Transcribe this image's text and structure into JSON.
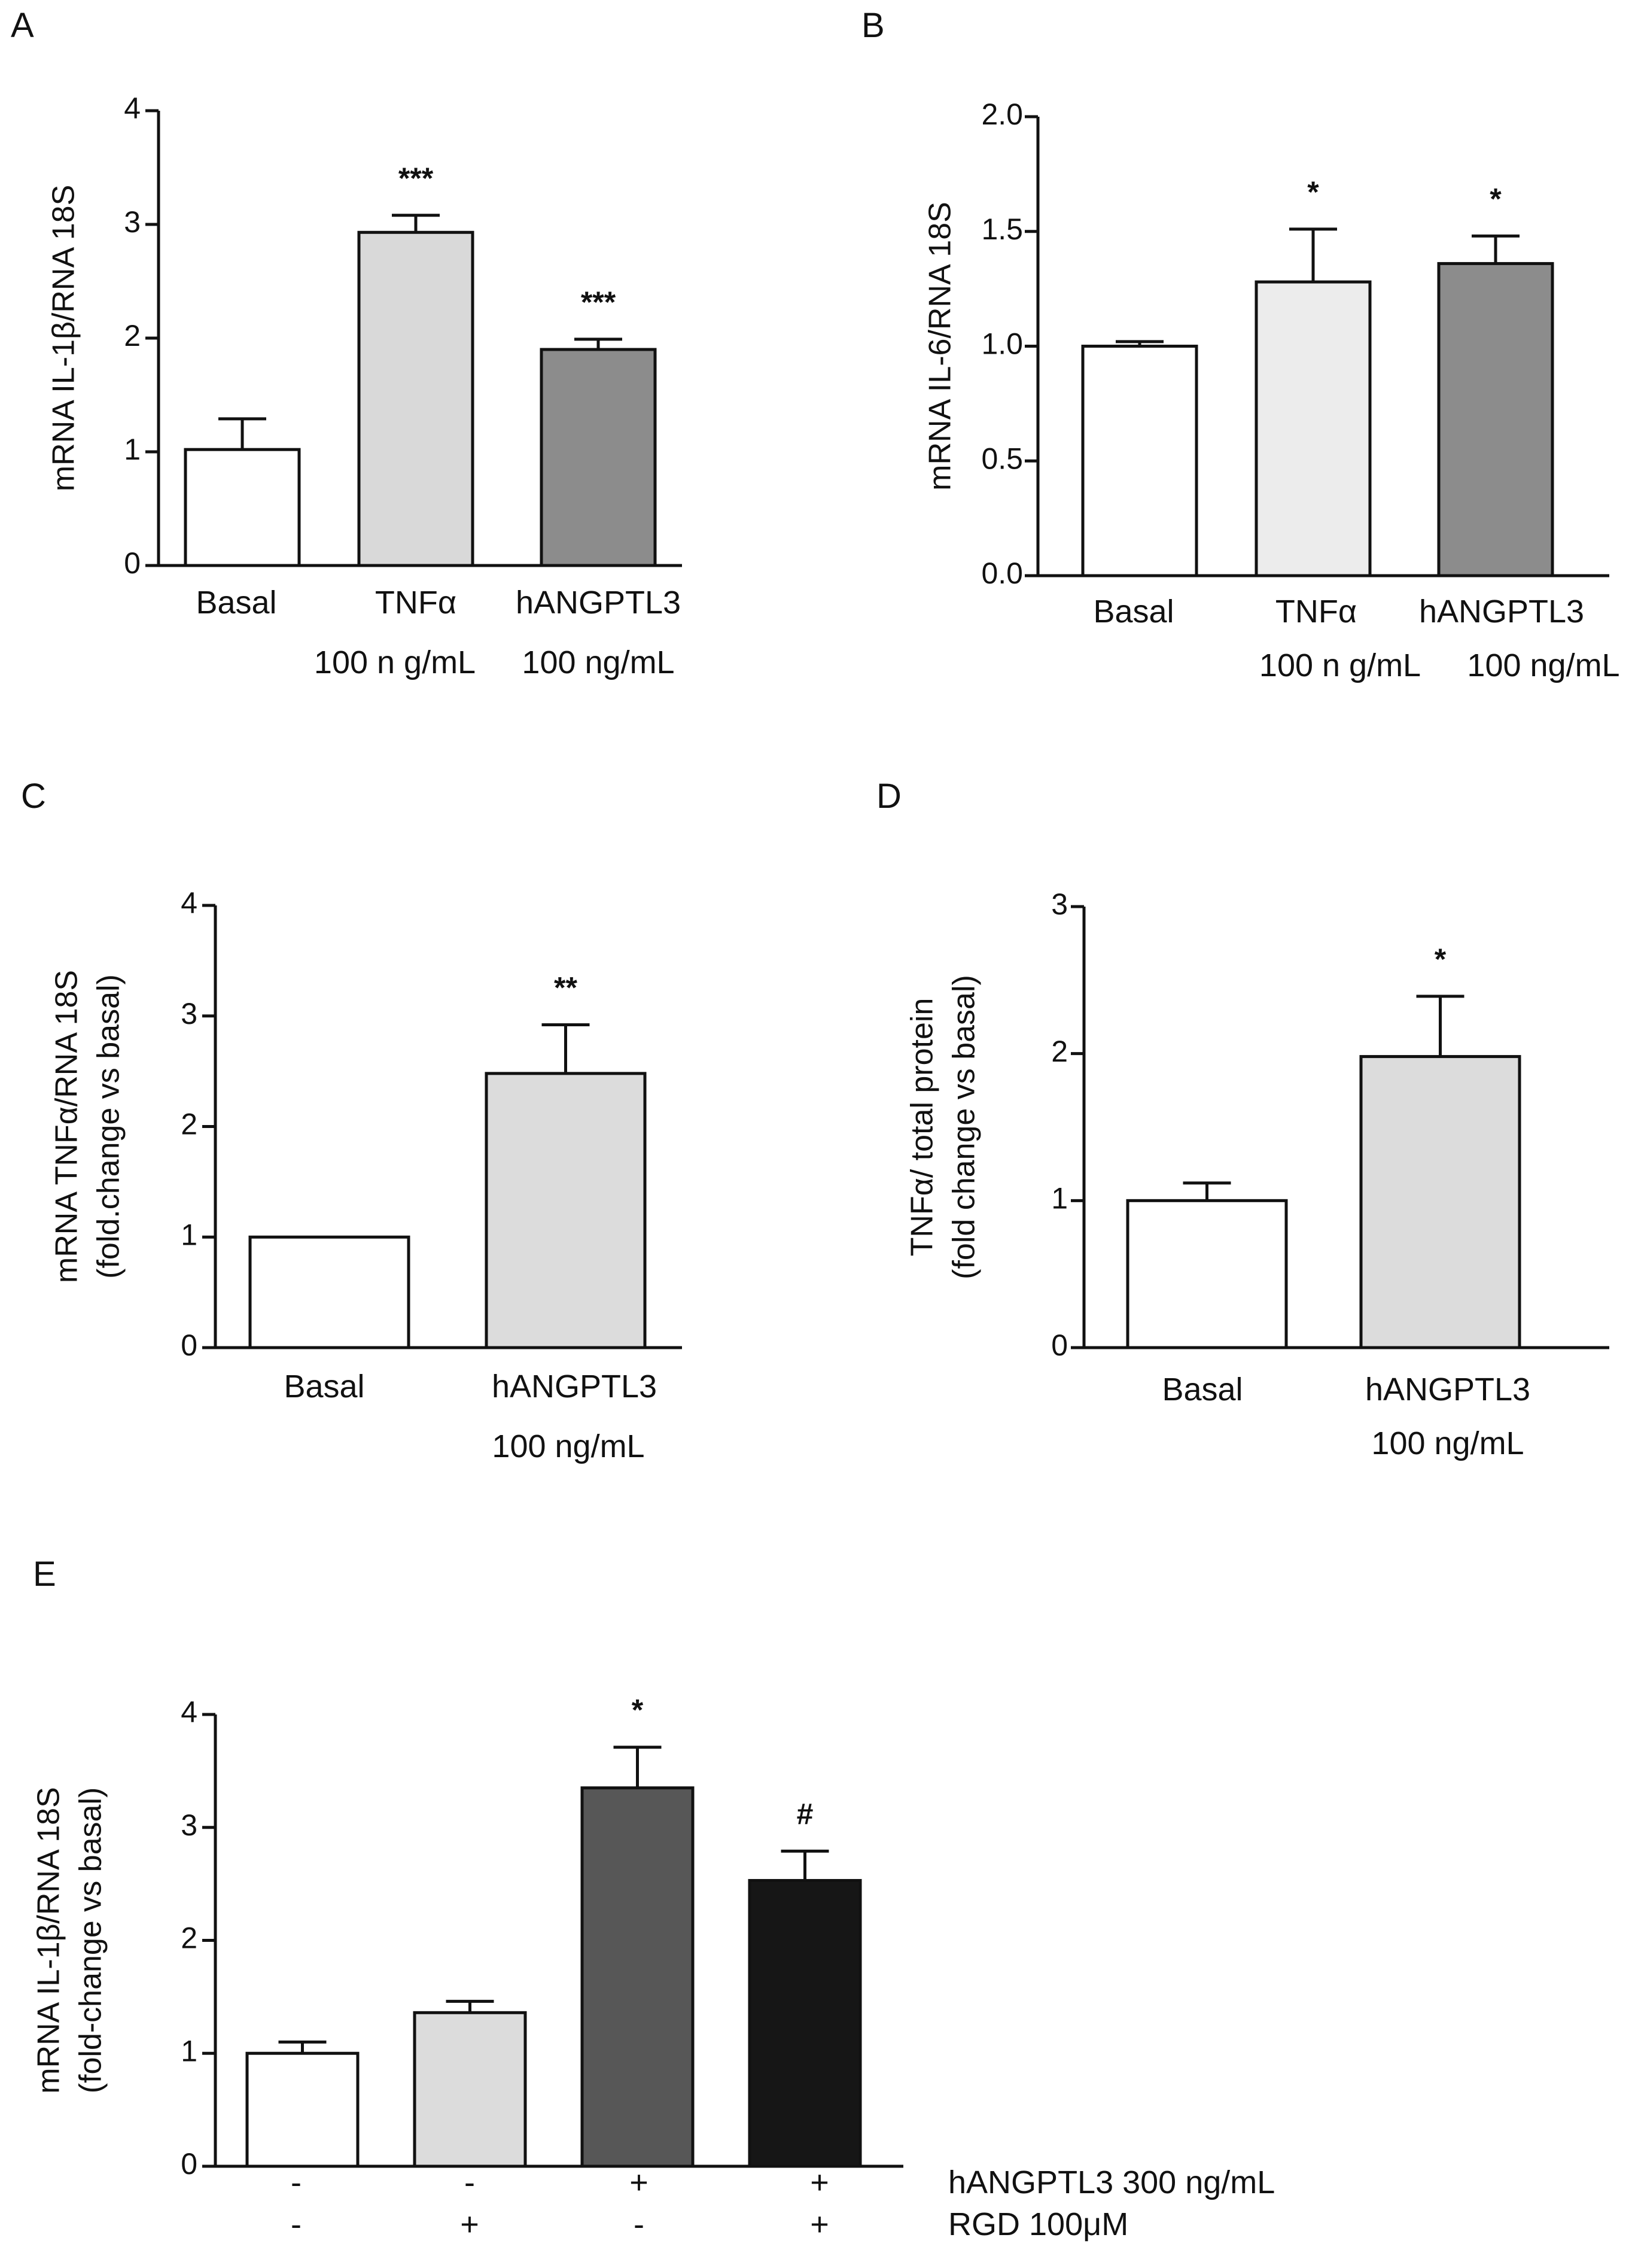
{
  "chart_data": [
    {
      "id": "A",
      "panel_label": "A",
      "type": "bar",
      "ylabel": "mRNA IL-1β/RNA 18S",
      "ylabel2": "",
      "ylim": [
        0,
        4
      ],
      "yticks": [
        "0",
        "1",
        "2",
        "3",
        "4"
      ],
      "ytick_values": [
        0,
        1,
        2,
        3,
        4
      ],
      "categories": [
        "Basal",
        "TNFα",
        "hANGPTL3"
      ],
      "sublabels": [
        "",
        "100 n g/mL",
        "100 ng/mL"
      ],
      "values": [
        1.02,
        2.93,
        1.9
      ],
      "errors": [
        0.27,
        0.15,
        0.09
      ],
      "significance": [
        "",
        "***",
        "***"
      ],
      "colors": [
        "#ffffff",
        "#d9d9d9",
        "#8c8c8c"
      ]
    },
    {
      "id": "B",
      "panel_label": "B",
      "type": "bar",
      "ylabel": "mRNA IL-6/RNA 18S",
      "ylabel2": "",
      "ylim": [
        0,
        2.0
      ],
      "yticks": [
        "0.0",
        "0.5",
        "1.0",
        "1.5",
        "2.0"
      ],
      "ytick_values": [
        0,
        0.5,
        1.0,
        1.5,
        2.0
      ],
      "categories": [
        "Basal",
        "TNFα",
        "hANGPTL3"
      ],
      "sublabels": [
        "",
        "100 n g/mL",
        "100 ng/mL"
      ],
      "values": [
        1.0,
        1.28,
        1.36
      ],
      "errors": [
        0.02,
        0.23,
        0.12
      ],
      "significance": [
        "",
        "*",
        "*"
      ],
      "colors": [
        "#ffffff",
        "#ececec",
        "#8c8c8c"
      ]
    },
    {
      "id": "C",
      "panel_label": "C",
      "type": "bar",
      "ylabel": "mRNA TNFα/RNA 18S",
      "ylabel2": "(fold.change vs basal)",
      "ylim": [
        0,
        4
      ],
      "yticks": [
        "0",
        "1",
        "2",
        "3",
        "4"
      ],
      "ytick_values": [
        0,
        1,
        2,
        3,
        4
      ],
      "categories": [
        "Basal",
        "hANGPTL3"
      ],
      "sublabels": [
        "",
        "100 ng/mL"
      ],
      "values": [
        1.0,
        2.48
      ],
      "errors": [
        0,
        0.44
      ],
      "significance": [
        "",
        "**"
      ],
      "colors": [
        "#ffffff",
        "#dcdcdc"
      ]
    },
    {
      "id": "D",
      "panel_label": "D",
      "type": "bar",
      "ylabel": "TNFα/ total protein",
      "ylabel2": "(fold change vs basal)",
      "ylim": [
        0,
        3
      ],
      "yticks": [
        "0",
        "1",
        "2",
        "3"
      ],
      "ytick_values": [
        0,
        1,
        2,
        3
      ],
      "categories": [
        "Basal",
        "hANGPTL3"
      ],
      "sublabels": [
        "",
        "100 ng/mL"
      ],
      "values": [
        1.0,
        1.98
      ],
      "errors": [
        0.12,
        0.41
      ],
      "significance": [
        "",
        "*"
      ],
      "colors": [
        "#ffffff",
        "#dcdcdc"
      ]
    },
    {
      "id": "E",
      "panel_label": "E",
      "type": "bar",
      "ylabel": "mRNA IL-1β/RNA 18S",
      "ylabel2": "(fold-change vs basal)",
      "ylim": [
        0,
        4
      ],
      "yticks": [
        "0",
        "1",
        "2",
        "3",
        "4"
      ],
      "ytick_values": [
        0,
        1,
        2,
        3,
        4
      ],
      "categories": [
        "",
        "",
        "",
        ""
      ],
      "sublabels": [
        "",
        "",
        "",
        ""
      ],
      "values": [
        1.0,
        1.36,
        3.35,
        2.53
      ],
      "errors": [
        0.1,
        0.1,
        0.36,
        0.26
      ],
      "significance": [
        "",
        "",
        "*",
        "#"
      ],
      "colors": [
        "#ffffff",
        "#dcdcdc",
        "#575757",
        "#161616"
      ],
      "condition_rows": [
        {
          "label": "hANGPTL3 300 ng/mL",
          "signs": [
            "-",
            "-",
            "+",
            "+"
          ]
        },
        {
          "label": "RGD 100μM",
          "signs": [
            "-",
            "+",
            "-",
            "+"
          ]
        }
      ]
    }
  ]
}
